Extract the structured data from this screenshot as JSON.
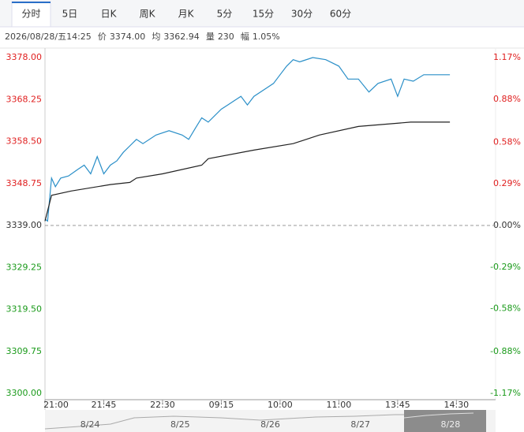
{
  "tabs": [
    "分时",
    "5日",
    "日K",
    "周K",
    "月K",
    "5分",
    "15分",
    "30分",
    "60分"
  ],
  "active_tab": 0,
  "info": {
    "datetime": "2026/08/28/五14:25",
    "items": [
      {
        "label": "价",
        "value": "3374.00"
      },
      {
        "label": "均",
        "value": "3362.94"
      },
      {
        "label": "量",
        "value": "230"
      },
      {
        "label": "幅",
        "value": "1.05%"
      }
    ]
  },
  "chart_data": {
    "type": "line",
    "xlim": [
      0,
      345
    ],
    "xticks": [
      {
        "value": 0,
        "label": "21:00"
      },
      {
        "value": 45,
        "label": "21:45"
      },
      {
        "value": 90,
        "label": "22:30"
      },
      {
        "value": 135,
        "label": "09:15"
      },
      {
        "value": 180,
        "label": "10:00"
      },
      {
        "value": 225,
        "label": "11:00"
      },
      {
        "value": 270,
        "label": "13:45"
      },
      {
        "value": 315,
        "label": "14:30"
      }
    ],
    "ylim": [
      3300,
      3378
    ],
    "yticks": [
      {
        "value": 3378,
        "label": "3378.00"
      },
      {
        "value": 3368.25,
        "label": "3368.25"
      },
      {
        "value": 3358.5,
        "label": "3358.50"
      },
      {
        "value": 3348.75,
        "label": "3348.75"
      },
      {
        "value": 3339,
        "label": "3339.00"
      },
      {
        "value": 3329.25,
        "label": "3329.25"
      },
      {
        "value": 3319.5,
        "label": "3319.50"
      },
      {
        "value": 3309.75,
        "label": "3309.75"
      },
      {
        "value": 3300,
        "label": "3300.00"
      }
    ],
    "y2lim": [
      -1.17,
      1.17
    ],
    "y2ticks": [
      {
        "value": 1.17,
        "label": "1.17%"
      },
      {
        "value": 0.88,
        "label": "0.88%"
      },
      {
        "value": 0.58,
        "label": "0.58%"
      },
      {
        "value": 0.29,
        "label": "0.29%"
      },
      {
        "value": 0,
        "label": "0.00%"
      },
      {
        "value": -0.29,
        "label": "-0.29%"
      },
      {
        "value": -0.58,
        "label": "-0.58%"
      },
      {
        "value": -0.88,
        "label": "-0.88%"
      },
      {
        "value": -1.17,
        "label": "-1.17%"
      }
    ],
    "up_color": "#e02020",
    "down_color": "#1a9a1a",
    "flat_color": "#333333",
    "series": [
      {
        "color": "#2a8fc8",
        "x": [
          0,
          2,
          5,
          8,
          12,
          18,
          25,
          30,
          35,
          40,
          45,
          50,
          55,
          60,
          65,
          70,
          75,
          85,
          95,
          105,
          110,
          115,
          120,
          125,
          135,
          140,
          145,
          150,
          155,
          160,
          170,
          175,
          180,
          185,
          190,
          195,
          205,
          215,
          225,
          232,
          240,
          248,
          255,
          265,
          270,
          275,
          282,
          290,
          300,
          305,
          310
        ],
        "values": [
          3340.5,
          3340,
          3350,
          3348,
          3350,
          3350.5,
          3352,
          3353,
          3351,
          3355,
          3351,
          3353,
          3354,
          3356,
          3357.5,
          3359,
          3358,
          3360,
          3361,
          3360,
          3359,
          3361.5,
          3364,
          3363,
          3366,
          3367,
          3368,
          3369,
          3367,
          3369,
          3371,
          3372,
          3374,
          3376,
          3377.5,
          3377,
          3378,
          3377.5,
          3376,
          3373,
          3373,
          3370,
          3372,
          3373,
          3369,
          3373,
          3372.5,
          3374,
          3374,
          3374,
          3374
        ]
      },
      {
        "color": "#222222",
        "x": [
          0,
          5,
          20,
          50,
          65,
          70,
          90,
          120,
          125,
          160,
          190,
          210,
          240,
          280,
          310
        ],
        "values": [
          3340,
          3346,
          3347,
          3348.5,
          3349,
          3350,
          3351,
          3353,
          3354.5,
          3356.5,
          3358,
          3360,
          3362,
          3363,
          3363
        ]
      }
    ]
  },
  "navigator": {
    "labels": [
      "8/24",
      "8/25",
      "8/26",
      "8/27",
      "8/28"
    ],
    "selected": 4
  }
}
